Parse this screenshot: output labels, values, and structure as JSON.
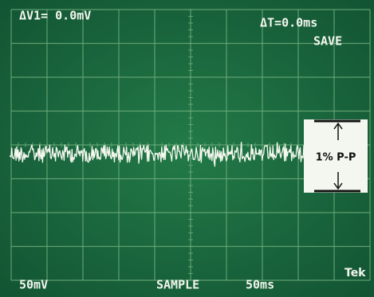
{
  "readouts": {
    "delta_v": "ΔV1= 0.0mV",
    "delta_t": "ΔT=0.0ms",
    "mode_top": "SAVE",
    "volts_per_div": "50mV",
    "acquisition": "SAMPLE",
    "time_per_div": "50ms",
    "brand": "Tek"
  },
  "annotation": {
    "label": "1% P-P"
  }
}
